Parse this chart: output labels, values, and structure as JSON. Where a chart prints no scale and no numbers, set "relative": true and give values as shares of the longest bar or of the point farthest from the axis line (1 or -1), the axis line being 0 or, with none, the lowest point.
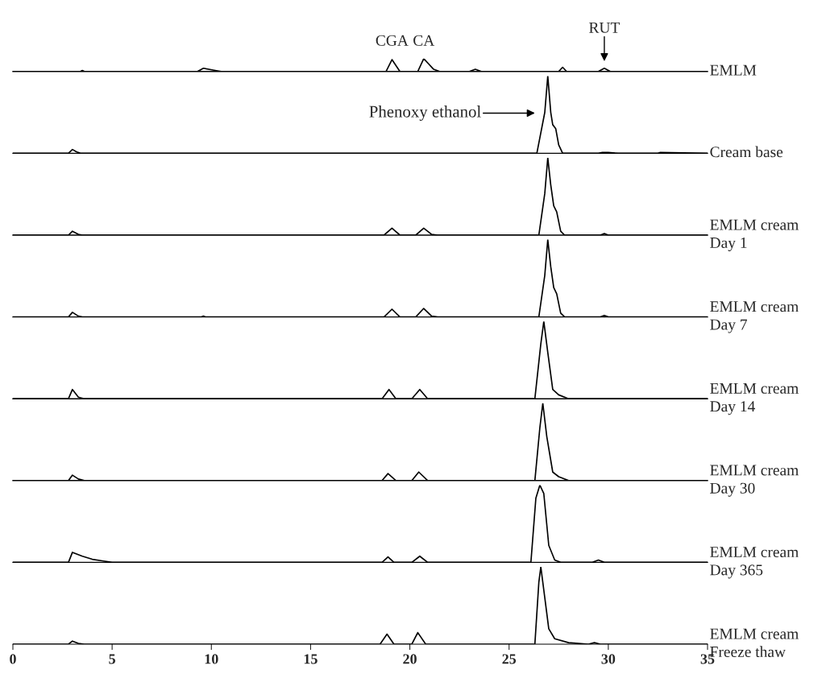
{
  "chart_data": [
    {
      "type": "line",
      "relative": true,
      "xlim": [
        0,
        35
      ],
      "tick_labels": false,
      "marker": "none",
      "line_style": "solid",
      "annotations": [
        "CGA",
        "CA",
        "RUT"
      ],
      "series": [
        {
          "name": "EMLM",
          "color": "#000000",
          "x": [
            0,
            3.4,
            3.5,
            3.6,
            9.3,
            9.6,
            10.2,
            10.5,
            17.8,
            18.8,
            19.1,
            19.5,
            20.4,
            20.7,
            21.2,
            21.5,
            23.0,
            23.3,
            23.6,
            26.8,
            27.5,
            27.7,
            27.9,
            29.5,
            29.8,
            30.1,
            35
          ],
          "values": [
            0,
            0,
            0.08,
            0,
            0,
            0.25,
            0.08,
            0,
            0,
            0,
            0.92,
            0,
            0,
            1,
            0.17,
            0,
            0,
            0.17,
            0,
            0,
            0,
            0.33,
            0,
            0,
            0.25,
            0,
            0
          ]
        }
      ]
    },
    {
      "type": "line",
      "relative": true,
      "xlim": [
        0,
        35
      ],
      "tick_labels": false,
      "marker": "none",
      "line_style": "solid",
      "annotations": [
        "Phenoxy ethanol"
      ],
      "series": [
        {
          "name": "Cream base",
          "color": "#000000",
          "x": [
            0,
            2.8,
            3.0,
            3.2,
            3.4,
            26.4,
            26.8,
            26.95,
            27.1,
            27.2,
            27.35,
            27.5,
            27.7,
            29.5,
            29.7,
            30.0,
            30.5,
            32.5,
            32.6,
            35
          ],
          "values": [
            0,
            0,
            0.05,
            0.02,
            0,
            0,
            0.53,
            1,
            0.53,
            0.37,
            0.32,
            0.11,
            0,
            0,
            0.01,
            0.01,
            0,
            0,
            0.01,
            0
          ]
        }
      ]
    },
    {
      "type": "line",
      "relative": true,
      "xlim": [
        0,
        35
      ],
      "tick_labels": false,
      "marker": "none",
      "line_style": "solid",
      "series": [
        {
          "name": "EMLM cream\nDay 1",
          "color": "#000000",
          "x": [
            0,
            2.8,
            3.0,
            3.3,
            3.5,
            18.7,
            19.1,
            19.5,
            20.3,
            20.7,
            21.1,
            21.4,
            26.5,
            26.8,
            26.95,
            27.1,
            27.25,
            27.4,
            27.6,
            27.8,
            29.6,
            29.8,
            30.0,
            35
          ],
          "values": [
            0,
            0,
            0.05,
            0.01,
            0,
            0,
            0.09,
            0,
            0,
            0.09,
            0.01,
            0,
            0,
            0.54,
            1,
            0.65,
            0.38,
            0.3,
            0.05,
            0,
            0,
            0.02,
            0,
            0
          ]
        }
      ]
    },
    {
      "type": "line",
      "relative": true,
      "xlim": [
        0,
        35
      ],
      "tick_labels": false,
      "marker": "none",
      "line_style": "solid",
      "series": [
        {
          "name": "EMLM cream\nDay 7",
          "color": "#000000",
          "x": [
            0,
            2.8,
            3.0,
            3.3,
            3.5,
            9.5,
            9.6,
            9.7,
            18.7,
            19.1,
            19.5,
            20.3,
            20.7,
            21.1,
            21.4,
            26.5,
            26.8,
            26.95,
            27.1,
            27.25,
            27.4,
            27.6,
            27.8,
            29.6,
            29.8,
            30.0,
            35
          ],
          "values": [
            0,
            0,
            0.06,
            0.01,
            0,
            0,
            0.01,
            0,
            0,
            0.1,
            0,
            0,
            0.11,
            0.01,
            0,
            0,
            0.54,
            1,
            0.65,
            0.38,
            0.3,
            0.05,
            0,
            0,
            0.02,
            0,
            0
          ]
        }
      ]
    },
    {
      "type": "line",
      "relative": true,
      "xlim": [
        0,
        35
      ],
      "tick_labels": false,
      "marker": "none",
      "line_style": "solid",
      "series": [
        {
          "name": "EMLM cream\nDay 14",
          "color": "#000000",
          "x": [
            0,
            2.8,
            3.0,
            3.3,
            3.6,
            18.6,
            18.95,
            19.3,
            20.1,
            20.5,
            20.9,
            26.3,
            26.6,
            26.75,
            26.95,
            27.2,
            27.5,
            28.0,
            35
          ],
          "values": [
            0,
            0,
            0.12,
            0.02,
            0,
            0,
            0.12,
            0,
            0,
            0.12,
            0,
            0,
            0.71,
            1,
            0.6,
            0.12,
            0.05,
            0,
            0
          ]
        }
      ]
    },
    {
      "type": "line",
      "relative": true,
      "xlim": [
        0,
        35
      ],
      "tick_labels": false,
      "marker": "none",
      "line_style": "solid",
      "series": [
        {
          "name": "EMLM cream\nDay 30",
          "color": "#000000",
          "x": [
            0,
            2.8,
            3.0,
            3.3,
            3.6,
            18.6,
            18.9,
            19.3,
            20.1,
            20.45,
            20.9,
            26.3,
            26.55,
            26.7,
            26.9,
            27.2,
            27.5,
            28.0,
            35
          ],
          "values": [
            0,
            0,
            0.07,
            0.02,
            0,
            0,
            0.09,
            0,
            0,
            0.11,
            0,
            0,
            0.68,
            1,
            0.57,
            0.11,
            0.05,
            0,
            0
          ]
        }
      ]
    },
    {
      "type": "line",
      "relative": true,
      "xlim": [
        0,
        35
      ],
      "tick_labels": false,
      "marker": "none",
      "line_style": "solid",
      "series": [
        {
          "name": "EMLM cream\nDay 365",
          "color": "#000000",
          "x": [
            0,
            2.8,
            3.0,
            3.5,
            4.0,
            4.5,
            5.0,
            18.6,
            18.9,
            19.2,
            20.1,
            20.5,
            20.9,
            26.1,
            26.35,
            26.55,
            26.75,
            27.0,
            27.3,
            27.6,
            29.2,
            29.5,
            29.8,
            35
          ],
          "values": [
            0,
            0,
            0.13,
            0.08,
            0.04,
            0.02,
            0,
            0,
            0.07,
            0,
            0,
            0.08,
            0,
            0,
            0.83,
            1,
            0.89,
            0.22,
            0.03,
            0,
            0,
            0.03,
            0,
            0
          ]
        }
      ]
    },
    {
      "type": "line",
      "relative": true,
      "xlim": [
        0,
        35
      ],
      "xticks": [
        0,
        5,
        10,
        15,
        20,
        25,
        30,
        35
      ],
      "tick_labels": "x",
      "marker": "none",
      "line_style": "solid",
      "series": [
        {
          "name": "EMLM cream\nFreeze thaw",
          "color": "#000000",
          "x": [
            0,
            2.8,
            3.0,
            3.3,
            3.6,
            18.5,
            18.85,
            19.2,
            20.1,
            20.4,
            20.8,
            26.3,
            26.5,
            26.6,
            26.8,
            27.0,
            27.3,
            28.0,
            29.0,
            29.3,
            29.6,
            35
          ],
          "values": [
            0,
            0,
            0.04,
            0.01,
            0,
            0,
            0.13,
            0,
            0,
            0.15,
            0,
            0,
            0.8,
            1.0,
            0.6,
            0.2,
            0.07,
            0.02,
            0,
            0.02,
            0,
            0
          ]
        }
      ]
    }
  ]
}
